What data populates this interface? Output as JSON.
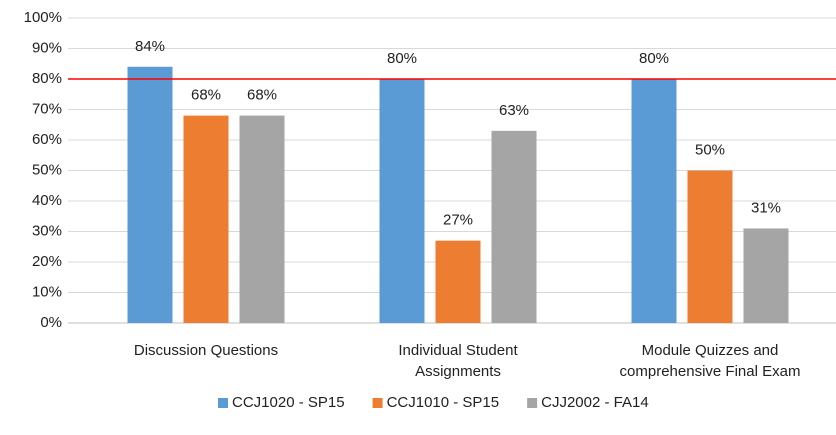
{
  "chart_data": {
    "type": "bar",
    "categories": [
      "Discussion Questions",
      "Individual Student Assignments",
      "Module Quizzes and comprehensive Final Exam"
    ],
    "series": [
      {
        "name": "CCJ1020 - SP15",
        "color": "#5b9bd5",
        "values": [
          84,
          80,
          80
        ],
        "value_labels": [
          "84%",
          "80%",
          "80%"
        ]
      },
      {
        "name": "CCJ1010 - SP15",
        "color": "#ed7d31",
        "values": [
          68,
          27,
          50
        ],
        "value_labels": [
          "68%",
          "27%",
          "50%"
        ]
      },
      {
        "name": "CJJ2002 - FA14",
        "color": "#a5a5a5",
        "values": [
          68,
          63,
          31
        ],
        "value_labels": [
          "68%",
          "63%",
          "31%"
        ]
      }
    ],
    "ylim": [
      0,
      100
    ],
    "yticks": [
      {
        "value": 0,
        "label": "0%"
      },
      {
        "value": 10,
        "label": "10%"
      },
      {
        "value": 20,
        "label": "20%"
      },
      {
        "value": 30,
        "label": "30%"
      },
      {
        "value": 40,
        "label": "40%"
      },
      {
        "value": 50,
        "label": "50%"
      },
      {
        "value": 60,
        "label": "60%"
      },
      {
        "value": 70,
        "label": "70%"
      },
      {
        "value": 80,
        "label": "80%"
      },
      {
        "value": 90,
        "label": "90%"
      },
      {
        "value": 100,
        "label": "100%"
      }
    ],
    "grid": true,
    "reference_line": {
      "value": 80,
      "color": "#ff0000"
    },
    "legend": "bottom"
  }
}
